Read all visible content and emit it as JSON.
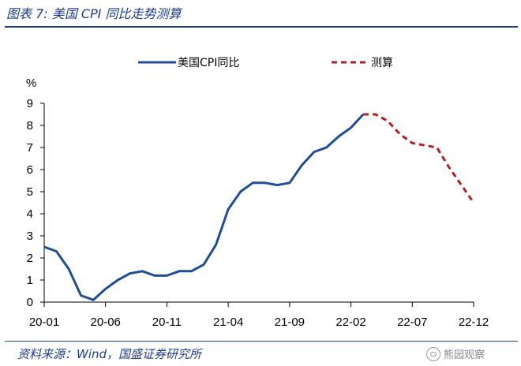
{
  "header": {
    "title": "图表 7:  美国 CPI 同比走势测算"
  },
  "footer": {
    "source": "资料来源：Wind，国盛证券研究所",
    "watermark": "熊园观察"
  },
  "icons": {
    "watermark": "wechat-icon"
  },
  "colors": {
    "accent": "#1f3c88",
    "actual": "#1f4e96",
    "forecast": "#b22222"
  },
  "chart_data": {
    "type": "line",
    "ylabel": "%",
    "ylim": [
      0,
      9
    ],
    "yticks": [
      0,
      1,
      2,
      3,
      4,
      5,
      6,
      7,
      8,
      9
    ],
    "xticks": [
      "20-01",
      "20-06",
      "20-11",
      "21-04",
      "21-09",
      "22-02",
      "22-07",
      "22-12"
    ],
    "legend": "top",
    "grid": false,
    "series": [
      {
        "name": "美国CPI同比",
        "style": "solid",
        "x": [
          "20-01",
          "20-02",
          "20-03",
          "20-04",
          "20-05",
          "20-06",
          "20-07",
          "20-08",
          "20-09",
          "20-10",
          "20-11",
          "20-12",
          "21-01",
          "21-02",
          "21-03",
          "21-04",
          "21-05",
          "21-06",
          "21-07",
          "21-08",
          "21-09",
          "21-10",
          "21-11",
          "21-12",
          "22-01",
          "22-02",
          "22-03"
        ],
        "values": [
          2.5,
          2.3,
          1.5,
          0.3,
          0.1,
          0.6,
          1.0,
          1.3,
          1.4,
          1.2,
          1.2,
          1.4,
          1.4,
          1.7,
          2.6,
          4.2,
          5.0,
          5.4,
          5.4,
          5.3,
          5.4,
          6.2,
          6.8,
          7.0,
          7.5,
          7.9,
          8.5
        ]
      },
      {
        "name": "测算",
        "style": "dashed",
        "x": [
          "22-03",
          "22-04",
          "22-05",
          "22-06",
          "22-07",
          "22-08",
          "22-09",
          "22-10",
          "22-11",
          "22-12"
        ],
        "values": [
          8.5,
          8.5,
          8.2,
          7.6,
          7.2,
          7.1,
          7.0,
          6.1,
          5.3,
          4.5
        ]
      }
    ]
  }
}
